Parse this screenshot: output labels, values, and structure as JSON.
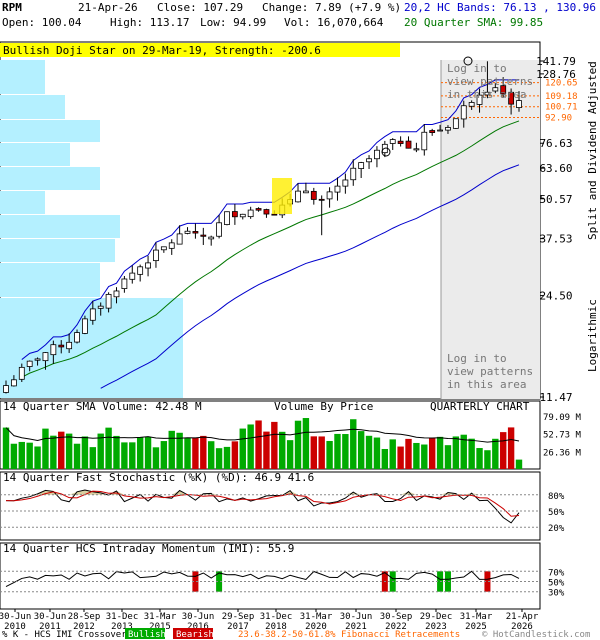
{
  "header": {
    "ticker": "RPM",
    "date": "21-Apr-26",
    "close": "Close: 107.29",
    "change": "Change: 7.89 (+7.9 %)",
    "open": "Open: 100.04",
    "high": "High: 113.17",
    "low": "Low: 94.99",
    "vol": "Vol: 16,070,664",
    "bands": "20,2 HC Bands: 76.13 , 130.96",
    "sma": "20 Quarter SMA: 99.85"
  },
  "pattern_banner": "Bullish Doji Star on 29-Mar-19, Strength: -200.6",
  "login_top": "Log in to view patterns in this area",
  "login_bottom": "Log in to view patterns in this area",
  "right_axis_label": "Split and Dividend Adjusted",
  "log_label": "Logarithmic",
  "price_ticks": [
    "141.79",
    "128.76",
    "76.63",
    "63.60",
    "50.57",
    "37.53",
    "24.50",
    "11.47"
  ],
  "fib_levels": [
    "120.65",
    "109.18",
    "100.71",
    "92.90"
  ],
  "volume_title": "14 Quarter SMA Volume: 42.48 M",
  "vbp_label": "Volume By Price",
  "chart_type": "QUARTERLY CHART",
  "volume_ticks": [
    "79.09 M",
    "52.73 M",
    "26.36 M"
  ],
  "stoch_title": "14 Quarter Fast Stochastic (%K) (%D): 46.9 41.6",
  "stoch_ticks": [
    "80%",
    "50%",
    "20%"
  ],
  "imi_title": "14 Quarter HCS Intraday Momentum (IMI): 55.9",
  "imi_ticks": [
    "70%",
    "50%",
    "30%"
  ],
  "x_labels": [
    "30-Jun",
    "30-Jun",
    "28-Sep",
    "31-Dec",
    "31-Mar",
    "30-Jun",
    "29-Sep",
    "31-Dec",
    "31-Mar",
    "30-Jun",
    "30-Sep",
    "29-Dec",
    "31-Mar",
    "21-Apr"
  ],
  "x_years": [
    "2010",
    "2011",
    "2012",
    "2013",
    "2015",
    "2016",
    "2017",
    "2018",
    "2020",
    "2021",
    "2022",
    "2023",
    "2025",
    "2026"
  ],
  "footer": {
    "legend_prefix": "% K - HCS IMI Crossover,",
    "bullish": "Bullish",
    "bearish": "Bearish",
    "fib": "23.6-38.2-50-61.8% Fibonacci Retracements",
    "copyright": "© HotCandlestick.com"
  },
  "colors": {
    "up": "#00aa00",
    "down": "#cc0000",
    "vbp": "#b4f0ff",
    "banner": "#ffff00",
    "bands": "#0000cc",
    "sma": "#007700",
    "fib": "#ff6600"
  },
  "chart_data": {
    "type": "candlestick",
    "timeframe": "quarterly",
    "price_axis": {
      "scale": "log",
      "ticks": [
        141.79,
        128.76,
        76.63,
        63.6,
        50.57,
        37.53,
        24.5,
        11.47
      ]
    },
    "close_last": 107.29,
    "series": [
      {
        "name": "20,2 HC Bands",
        "values_last": [
          76.13,
          130.96
        ]
      },
      {
        "name": "20 Quarter SMA",
        "values_last": [
          99.85
        ]
      }
    ],
    "fibonacci": [
      120.65,
      109.18,
      100.71,
      92.9
    ],
    "volume_axis": {
      "ticks": [
        79.09,
        52.73,
        26.36
      ],
      "unit": "M"
    },
    "stochastic": {
      "k": 46.9,
      "d": 41.6,
      "ticks": [
        80,
        50,
        20
      ]
    },
    "imi": {
      "value": 55.9,
      "ticks": [
        70,
        50,
        30
      ]
    }
  }
}
